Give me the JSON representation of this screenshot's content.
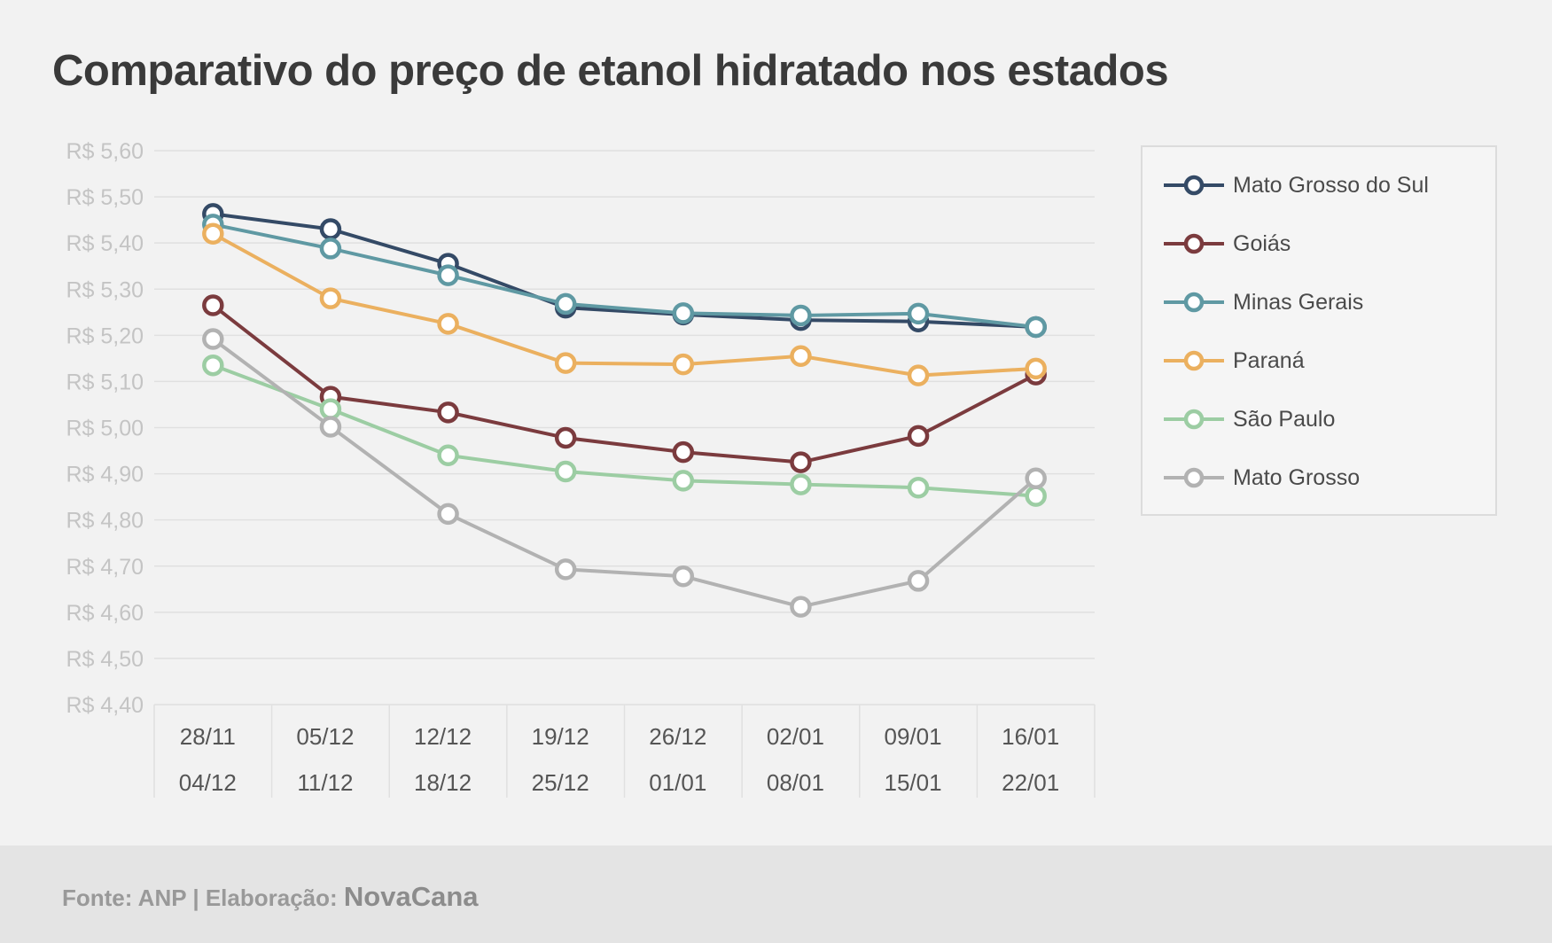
{
  "title": "Comparativo do preço de etanol hidratado nos estados",
  "footer": {
    "source": "Fonte: ANP | Elaboração:",
    "brand": "NovaCana"
  },
  "chart_data": {
    "type": "line",
    "title": "Comparativo do preço de etanol hidratado nos estados",
    "xlabel": "",
    "ylabel": "",
    "categories": [
      [
        "28/11",
        "04/12"
      ],
      [
        "05/12",
        "11/12"
      ],
      [
        "12/12",
        "18/12"
      ],
      [
        "19/12",
        "25/12"
      ],
      [
        "26/12",
        "01/01"
      ],
      [
        "02/01",
        "08/01"
      ],
      [
        "09/01",
        "15/01"
      ],
      [
        "16/01",
        "22/01"
      ]
    ],
    "ylim": [
      4.4,
      5.6
    ],
    "yticks": [
      "R$ 4,40",
      "R$ 4,50",
      "R$ 4,60",
      "R$ 4,70",
      "R$ 4,80",
      "R$ 4,90",
      "R$ 5,00",
      "R$ 5,10",
      "R$ 5,20",
      "R$ 5,30",
      "R$ 5,40",
      "R$ 5,50",
      "R$ 5,60"
    ],
    "grid": true,
    "legend_position": "right",
    "series": [
      {
        "name": "Mato Grosso do Sul",
        "color": "#344a66",
        "values": [
          5.463,
          5.43,
          5.355,
          5.26,
          5.245,
          5.233,
          5.23,
          5.218
        ]
      },
      {
        "name": "Goiás",
        "color": "#7b3b3e",
        "values": [
          5.265,
          5.067,
          5.033,
          4.978,
          4.947,
          4.925,
          4.982,
          5.115
        ]
      },
      {
        "name": "Minas Gerais",
        "color": "#5f99a3",
        "values": [
          5.44,
          5.388,
          5.33,
          5.268,
          5.248,
          5.243,
          5.247,
          5.218
        ]
      },
      {
        "name": "Paraná",
        "color": "#ebb05f",
        "values": [
          5.42,
          5.28,
          5.225,
          5.14,
          5.137,
          5.155,
          5.113,
          5.128
        ]
      },
      {
        "name": "São Paulo",
        "color": "#9ccda3",
        "values": [
          5.135,
          5.04,
          4.94,
          4.905,
          4.885,
          4.877,
          4.87,
          4.852
        ]
      },
      {
        "name": "Mato Grosso",
        "color": "#b2b2b2",
        "values": [
          5.192,
          5.002,
          4.813,
          4.693,
          4.678,
          4.612,
          4.668,
          4.89
        ]
      }
    ]
  }
}
